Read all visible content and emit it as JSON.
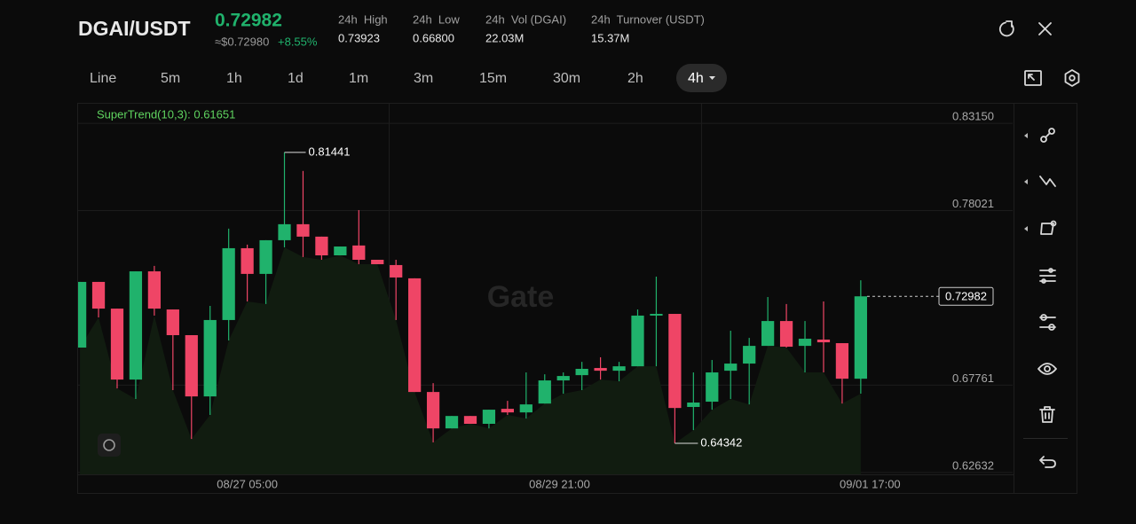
{
  "header": {
    "pair": "DGAI/USDT",
    "price": "0.72982",
    "usd_price": "≈$0.72980",
    "change": "+8.55%",
    "stats": [
      {
        "label": "24h  High",
        "value": "0.73923"
      },
      {
        "label": "24h  Low",
        "value": "0.66800"
      },
      {
        "label": "24h  Vol (DGAI)",
        "value": "22.03M"
      },
      {
        "label": "24h  Turnover (USDT)",
        "value": "15.37M"
      }
    ]
  },
  "tabs": [
    "Line",
    "5m",
    "1h",
    "1d",
    "1m",
    "3m",
    "15m",
    "30m",
    "2h",
    "4h"
  ],
  "chart_data": {
    "type": "candlestick",
    "indicator_label": "SuperTrend(10,3): 0.61651",
    "watermark": "Gate",
    "up_color": "#20b26c",
    "down_color": "#ef4566",
    "open": [
      0.6997,
      0.7383,
      0.7226,
      0.6809,
      0.7445,
      0.7221,
      0.707,
      0.671,
      0.7159,
      0.7581,
      0.743,
      0.7628,
      0.7722,
      0.7649,
      0.7539,
      0.7597,
      0.7513,
      0.7482,
      0.7404,
      0.6736,
      0.6522,
      0.6595,
      0.6549,
      0.6637,
      0.6616,
      0.6668,
      0.6804,
      0.6835,
      0.6877,
      0.6861,
      0.6887,
      0.7185,
      0.7195,
      0.6648,
      0.6679,
      0.6861,
      0.6903,
      0.7007,
      0.7153,
      0.7007,
      0.7044,
      0.7023,
      0.6814
    ],
    "high": [
      0.7383,
      0.7383,
      0.7226,
      0.7445,
      0.7477,
      0.7221,
      0.707,
      0.7242,
      0.7696,
      0.7602,
      0.7628,
      0.81441,
      0.8035,
      0.7649,
      0.7591,
      0.7805,
      0.7513,
      0.7513,
      0.7404,
      0.6788,
      0.6595,
      0.6595,
      0.6632,
      0.6684,
      0.6851,
      0.684,
      0.6851,
      0.6913,
      0.694,
      0.6913,
      0.7221,
      0.7414,
      0.7195,
      0.6851,
      0.6924,
      0.7096,
      0.7054,
      0.7294,
      0.7253,
      0.7153,
      0.7268,
      0.7023,
      0.73923
    ],
    "low": [
      0.6997,
      0.7174,
      0.6757,
      0.6695,
      0.7185,
      0.6747,
      0.646,
      0.6601,
      0.7039,
      0.7268,
      0.7253,
      0.7586,
      0.7529,
      0.7513,
      0.7539,
      0.7487,
      0.7487,
      0.7159,
      0.6736,
      0.644,
      0.6522,
      0.6549,
      0.6522,
      0.6601,
      0.658,
      0.6668,
      0.6726,
      0.6747,
      0.6809,
      0.6799,
      0.6887,
      0.6887,
      0.64342,
      0.6512,
      0.6632,
      0.6695,
      0.6663,
      0.7007,
      0.6997,
      0.6851,
      0.6851,
      0.6668,
      0.6726
    ],
    "close": [
      0.7383,
      0.7226,
      0.6809,
      0.7445,
      0.7226,
      0.707,
      0.671,
      0.7159,
      0.7581,
      0.743,
      0.7628,
      0.7722,
      0.7649,
      0.7539,
      0.7591,
      0.7513,
      0.7487,
      0.7409,
      0.6736,
      0.6522,
      0.6595,
      0.6549,
      0.6632,
      0.6616,
      0.6663,
      0.6804,
      0.683,
      0.6872,
      0.6861,
      0.6887,
      0.7185,
      0.7195,
      0.6642,
      0.6674,
      0.6851,
      0.6903,
      0.7007,
      0.7153,
      0.7002,
      0.7049,
      0.7028,
      0.6814,
      0.72982
    ],
    "high_mark_index": 11,
    "low_mark_index": 32,
    "xlim": [
      -0.1,
      50.17
    ],
    "xticks": [
      {
        "value": 9,
        "label": "08/27 05:00"
      },
      {
        "value": 25.8,
        "label": "08/29 21:00"
      },
      {
        "value": 42.5,
        "label": "09/01 17:00"
      }
    ],
    "ylim": [
      0.6252,
      0.843
    ],
    "yticks": [
      {
        "value": 0.8315,
        "label": "0.83150"
      },
      0.78021,
      0.67761,
      0.62632
    ],
    "grid": true
  }
}
